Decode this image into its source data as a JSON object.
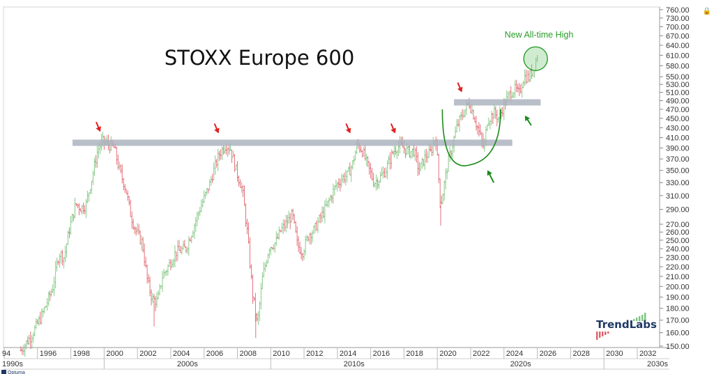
{
  "chart_data": {
    "type": "bar",
    "title": "STOXX Europe 600",
    "annotation": "New All-time High",
    "y_axis_side": "right",
    "y_scale": "log",
    "ylim": [
      146,
      770
    ],
    "xlim": [
      1994.0,
      2033.3
    ],
    "y_ticks": [
      "760.00",
      "730.00",
      "700.00",
      "670.00",
      "640.00",
      "610.00",
      "580.00",
      "550.00",
      "530.00",
      "510.00",
      "490.00",
      "470.00",
      "450.00",
      "430.00",
      "410.00",
      "390.00",
      "370.00",
      "350.00",
      "330.00",
      "310.00",
      "290.00",
      "270.00",
      "260.00",
      "250.00",
      "240.00",
      "230.00",
      "220.00",
      "210.00",
      "200.00",
      "190.00",
      "180.00",
      "170.00",
      "160.00",
      "150.00"
    ],
    "x_ticks": [
      "94",
      "1996",
      "1998",
      "2000",
      "2002",
      "2004",
      "2006",
      "2008",
      "2010",
      "2012",
      "2014",
      "2016",
      "2018",
      "2020",
      "2022",
      "2024",
      "2026",
      "2028",
      "2030",
      "2032"
    ],
    "decades": [
      "1990s",
      "2000s",
      "2010s",
      "2020s",
      "2030s"
    ],
    "resistance_levels": [
      400,
      486
    ],
    "price_path": [
      [
        1995.0,
        147
      ],
      [
        1995.6,
        157
      ],
      [
        1996.3,
        175
      ],
      [
        1996.9,
        198
      ],
      [
        1997.3,
        235
      ],
      [
        1997.6,
        230
      ],
      [
        1997.9,
        262
      ],
      [
        1998.3,
        298
      ],
      [
        1998.6,
        292
      ],
      [
        1998.9,
        296
      ],
      [
        1999.3,
        342
      ],
      [
        1999.6,
        385
      ],
      [
        1999.9,
        403
      ],
      [
        2000.2,
        398
      ],
      [
        2000.6,
        390
      ],
      [
        2000.9,
        352
      ],
      [
        2001.3,
        320
      ],
      [
        2001.6,
        282
      ],
      [
        2001.9,
        262
      ],
      [
        2002.3,
        246
      ],
      [
        2002.6,
        205
      ],
      [
        2002.9,
        188
      ],
      [
        2003.2,
        186
      ],
      [
        2003.5,
        210
      ],
      [
        2003.9,
        222
      ],
      [
        2004.3,
        236
      ],
      [
        2004.6,
        238
      ],
      [
        2004.9,
        240
      ],
      [
        2005.3,
        262
      ],
      [
        2005.6,
        282
      ],
      [
        2005.9,
        300
      ],
      [
        2006.3,
        325
      ],
      [
        2006.6,
        352
      ],
      [
        2006.9,
        378
      ],
      [
        2007.3,
        397
      ],
      [
        2007.6,
        388
      ],
      [
        2007.9,
        352
      ],
      [
        2008.3,
        318
      ],
      [
        2008.6,
        258
      ],
      [
        2008.9,
        194
      ],
      [
        2009.2,
        166
      ],
      [
        2009.5,
        208
      ],
      [
        2009.9,
        242
      ],
      [
        2010.3,
        247
      ],
      [
        2010.6,
        262
      ],
      [
        2010.9,
        270
      ],
      [
        2011.3,
        283
      ],
      [
        2011.6,
        244
      ],
      [
        2011.9,
        236
      ],
      [
        2012.3,
        258
      ],
      [
        2012.6,
        262
      ],
      [
        2012.9,
        275
      ],
      [
        2013.3,
        292
      ],
      [
        2013.6,
        308
      ],
      [
        2013.9,
        325
      ],
      [
        2014.3,
        338
      ],
      [
        2014.6,
        342
      ],
      [
        2014.9,
        360
      ],
      [
        2015.2,
        397
      ],
      [
        2015.5,
        385
      ],
      [
        2015.8,
        360
      ],
      [
        2016.2,
        330
      ],
      [
        2016.5,
        336
      ],
      [
        2016.9,
        350
      ],
      [
        2017.3,
        380
      ],
      [
        2017.6,
        393
      ],
      [
        2017.9,
        392
      ],
      [
        2018.3,
        382
      ],
      [
        2018.6,
        385
      ],
      [
        2018.9,
        350
      ],
      [
        2019.3,
        375
      ],
      [
        2019.6,
        382
      ],
      [
        2019.9,
        414
      ],
      [
        2020.2,
        295
      ],
      [
        2020.6,
        358
      ],
      [
        2020.9,
        395
      ],
      [
        2021.2,
        435
      ],
      [
        2021.6,
        465
      ],
      [
        2021.9,
        485
      ],
      [
        2022.2,
        455
      ],
      [
        2022.6,
        410
      ],
      [
        2022.8,
        388
      ],
      [
        2023.0,
        445
      ],
      [
        2023.4,
        462
      ],
      [
        2023.7,
        450
      ],
      [
        2024.0,
        480
      ],
      [
        2024.4,
        510
      ],
      [
        2024.7,
        518
      ],
      [
        2024.9,
        505
      ],
      [
        2025.2,
        550
      ],
      [
        2025.5,
        548
      ],
      [
        2025.8,
        575
      ],
      [
        2026.0,
        610
      ]
    ]
  }
}
